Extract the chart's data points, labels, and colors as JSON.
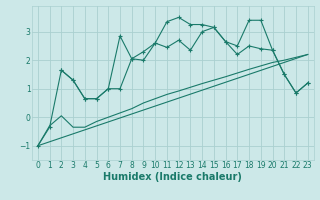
{
  "xlabel": "Humidex (Indice chaleur)",
  "xlim": [
    -0.5,
    23.5
  ],
  "ylim": [
    -1.5,
    3.9
  ],
  "yticks": [
    -1,
    0,
    1,
    2,
    3
  ],
  "xticks": [
    0,
    1,
    2,
    3,
    4,
    5,
    6,
    7,
    8,
    9,
    10,
    11,
    12,
    13,
    14,
    15,
    16,
    17,
    18,
    19,
    20,
    21,
    22,
    23
  ],
  "bg_color": "#cce8e8",
  "grid_color": "#aad0d0",
  "line_color": "#1a7a6a",
  "lines": [
    {
      "x": [
        0,
        1,
        2,
        3,
        4,
        5,
        6,
        7,
        8,
        9,
        10,
        11,
        12,
        13,
        14,
        15,
        16,
        17,
        18,
        19,
        20,
        21,
        22,
        23
      ],
      "y": [
        -1.0,
        -0.35,
        1.65,
        1.3,
        0.65,
        0.65,
        1.0,
        2.85,
        2.05,
        2.0,
        2.6,
        3.35,
        3.5,
        3.25,
        3.25,
        3.15,
        2.65,
        2.5,
        3.4,
        3.4,
        2.35,
        1.5,
        0.85,
        1.2
      ],
      "marker": "+"
    },
    {
      "x": [
        2,
        3,
        4,
        5,
        6,
        7,
        8,
        9,
        10,
        11,
        12,
        13,
        14,
        15,
        16,
        17,
        18,
        19,
        20,
        21,
        22,
        23
      ],
      "y": [
        1.65,
        1.3,
        0.65,
        0.65,
        1.0,
        1.0,
        2.05,
        2.3,
        2.6,
        2.45,
        2.7,
        2.35,
        3.0,
        3.15,
        2.65,
        2.2,
        2.5,
        2.4,
        2.35,
        1.5,
        0.85,
        1.2
      ],
      "marker": "+"
    },
    {
      "x": [
        0,
        1,
        2,
        3,
        4,
        5,
        6,
        7,
        8,
        9,
        10,
        11,
        12,
        13,
        14,
        15,
        16,
        17,
        18,
        19,
        20,
        21,
        22,
        23
      ],
      "y": [
        -1.0,
        -0.3,
        0.05,
        -0.35,
        -0.35,
        -0.15,
        0.0,
        0.15,
        0.3,
        0.5,
        0.65,
        0.8,
        0.92,
        1.05,
        1.18,
        1.3,
        1.42,
        1.55,
        1.68,
        1.8,
        1.92,
        2.0,
        2.1,
        2.2
      ],
      "marker": null
    },
    {
      "x": [
        0,
        23
      ],
      "y": [
        -1.0,
        2.2
      ],
      "marker": null
    }
  ],
  "font_color": "#1a7a6a",
  "tick_fontsize": 5.5,
  "label_fontsize": 7.0
}
